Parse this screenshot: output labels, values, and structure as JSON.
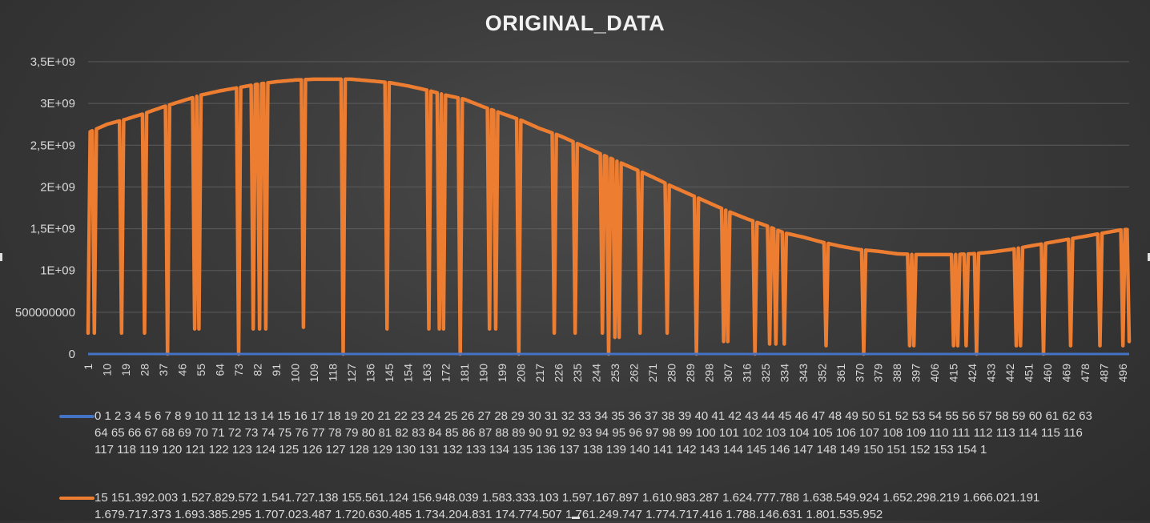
{
  "chart_data": {
    "type": "line",
    "title": "ORIGINAL_DATA",
    "xlabel": "",
    "ylabel": "",
    "ylim": [
      0,
      3500000000
    ],
    "y_ticks": [
      "0",
      "500000000",
      "1E+09",
      "1,5E+09",
      "2E+09",
      "2,5E+09",
      "3E+09",
      "3,5E+09"
    ],
    "x_ticks": [
      "1",
      "10",
      "19",
      "28",
      "37",
      "46",
      "55",
      "64",
      "73",
      "82",
      "91",
      "100",
      "109",
      "118",
      "127",
      "136",
      "145",
      "154",
      "163",
      "172",
      "181",
      "190",
      "199",
      "208",
      "217",
      "226",
      "235",
      "244",
      "253",
      "262",
      "271",
      "280",
      "289",
      "298",
      "307",
      "316",
      "325",
      "334",
      "343",
      "352",
      "361",
      "370",
      "379",
      "388",
      "397",
      "406",
      "415",
      "424",
      "433",
      "442",
      "451",
      "460",
      "469",
      "478",
      "487",
      "496"
    ],
    "x_range": [
      1,
      499
    ],
    "grid": "horizontal",
    "legend_position": "bottom",
    "series": [
      {
        "color": "#4472c4",
        "legend_text": "0 1 2 3 4 5 6 7 8 9 10 11 12 13 14 15 16 17 18 19 20 21 22 23 24 25 26 27 28 29 30 31 32 33 34 35 36 37 38 39 40 41 42 43 44 45 46 47 48 49 50 51 52 53 54 55 56 57 58 59 60 61 62 63 64 65 66 67 68 69 70 71 72 73 74 75 76 77 78 79 80 81 82 83 84 85 86 87 88 89 90 91 92 93 94 95 96 97 98 99 100 101 102 103 104 105 106 107 108 109 110 111 112 113 114 115 116 117 118 119 120 121 122 123 124 125 126 127 128 129 130 131 132 133 134 135 136 137 138 139 140 141 142 143 144 145 146 147 148 149 150 151 152 153 154 1",
        "constant_value": 0
      },
      {
        "color": "#ed7d31",
        "legend_text": "15 151.392.003 1.527.829.572 1.541.727.138 155.561.124 156.948.039 1.583.333.103 1.597.167.897 1.610.983.287 1.624.777.788 1.638.549.924 1.652.298.219 1.666.021.191 1.679.717.373 1.693.385.295 1.707.023.487 1.720.630.485 1.734.204.831 174.774.507 1.761.249.747 1.774.717.416 1.788.146.631 1.801.535.952",
        "envelope": [
          [
            1,
            2650000000
          ],
          [
            10,
            2750000000
          ],
          [
            19,
            2810000000
          ],
          [
            28,
            2880000000
          ],
          [
            37,
            2960000000
          ],
          [
            46,
            3030000000
          ],
          [
            55,
            3100000000
          ],
          [
            64,
            3150000000
          ],
          [
            73,
            3190000000
          ],
          [
            82,
            3230000000
          ],
          [
            91,
            3260000000
          ],
          [
            100,
            3280000000
          ],
          [
            109,
            3290000000
          ],
          [
            118,
            3290000000
          ],
          [
            127,
            3290000000
          ],
          [
            136,
            3270000000
          ],
          [
            145,
            3250000000
          ],
          [
            154,
            3210000000
          ],
          [
            163,
            3160000000
          ],
          [
            172,
            3100000000
          ],
          [
            181,
            3050000000
          ],
          [
            190,
            2960000000
          ],
          [
            199,
            2880000000
          ],
          [
            208,
            2800000000
          ],
          [
            217,
            2700000000
          ],
          [
            226,
            2620000000
          ],
          [
            235,
            2520000000
          ],
          [
            244,
            2420000000
          ],
          [
            253,
            2320000000
          ],
          [
            262,
            2220000000
          ],
          [
            271,
            2120000000
          ],
          [
            280,
            2010000000
          ],
          [
            289,
            1910000000
          ],
          [
            298,
            1810000000
          ],
          [
            307,
            1710000000
          ],
          [
            316,
            1620000000
          ],
          [
            325,
            1540000000
          ],
          [
            334,
            1450000000
          ],
          [
            343,
            1400000000
          ],
          [
            352,
            1340000000
          ],
          [
            361,
            1290000000
          ],
          [
            370,
            1250000000
          ],
          [
            379,
            1230000000
          ],
          [
            388,
            1200000000
          ],
          [
            397,
            1190000000
          ],
          [
            406,
            1190000000
          ],
          [
            415,
            1190000000
          ],
          [
            424,
            1200000000
          ],
          [
            433,
            1220000000
          ],
          [
            442,
            1250000000
          ],
          [
            451,
            1290000000
          ],
          [
            460,
            1330000000
          ],
          [
            469,
            1370000000
          ],
          [
            478,
            1410000000
          ],
          [
            487,
            1450000000
          ],
          [
            496,
            1490000000
          ],
          [
            499,
            1490000000
          ]
        ],
        "dips": [
          [
            1,
            250000000
          ],
          [
            4,
            250000000
          ],
          [
            17,
            250000000
          ],
          [
            28,
            250000000
          ],
          [
            39,
            0
          ],
          [
            52,
            300000000
          ],
          [
            54,
            300000000
          ],
          [
            73,
            0
          ],
          [
            80,
            300000000
          ],
          [
            83,
            300000000
          ],
          [
            86,
            300000000
          ],
          [
            104,
            320000000
          ],
          [
            123,
            0
          ],
          [
            144,
            300000000
          ],
          [
            164,
            300000000
          ],
          [
            169,
            300000000
          ],
          [
            171,
            300000000
          ],
          [
            179,
            0
          ],
          [
            193,
            300000000
          ],
          [
            196,
            300000000
          ],
          [
            207,
            0
          ],
          [
            224,
            250000000
          ],
          [
            234,
            250000000
          ],
          [
            247,
            250000000
          ],
          [
            250,
            0
          ],
          [
            253,
            200000000
          ],
          [
            255,
            200000000
          ],
          [
            265,
            250000000
          ],
          [
            278,
            250000000
          ],
          [
            292,
            0
          ],
          [
            305,
            150000000
          ],
          [
            307,
            150000000
          ],
          [
            320,
            0
          ],
          [
            327,
            120000000
          ],
          [
            330,
            120000000
          ],
          [
            334,
            120000000
          ],
          [
            354,
            100000000
          ],
          [
            372,
            0
          ],
          [
            394,
            100000000
          ],
          [
            396,
            100000000
          ],
          [
            415,
            100000000
          ],
          [
            417,
            100000000
          ],
          [
            421,
            100000000
          ],
          [
            426,
            0
          ],
          [
            445,
            100000000
          ],
          [
            447,
            100000000
          ],
          [
            458,
            0
          ],
          [
            471,
            100000000
          ],
          [
            485,
            100000000
          ],
          [
            496,
            100000000
          ],
          [
            499,
            150000000
          ]
        ]
      }
    ]
  }
}
